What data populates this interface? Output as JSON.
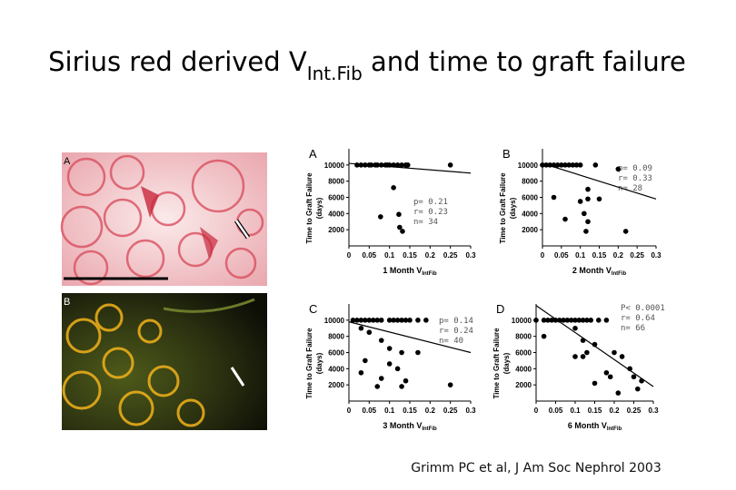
{
  "slide": {
    "title": {
      "main": "Sirius red derived V",
      "sub": "Int.Fib",
      "rest": " and time to graft failure"
    },
    "images": [
      {
        "label": "A"
      },
      {
        "label": "B"
      }
    ],
    "citation": "Grimm PC et al, J Am Soc Nephrol 2003"
  },
  "chart_data": [
    {
      "type": "scatter",
      "panel": "A",
      "ylabel": [
        "Time to Graft Failure",
        "(days)"
      ],
      "xlabel": "1 Month V",
      "xlabel_sub": "IntFib",
      "stats": [
        "p= 0.21",
        "r= 0.23",
        "n= 34"
      ],
      "color": "#000000",
      "x": [
        0.02,
        0.03,
        0.04,
        0.05,
        0.055,
        0.065,
        0.07,
        0.08,
        0.09,
        0.095,
        0.1,
        0.11,
        0.12,
        0.13,
        0.14,
        0.145,
        0.25,
        0.11,
        0.078,
        0.123,
        0.125,
        0.132
      ],
      "y": [
        10000,
        10000,
        10000,
        10000,
        10000,
        10000,
        10000,
        10000,
        10000,
        10000,
        10000,
        10000,
        10000,
        10000,
        10000,
        10000,
        10000,
        7200,
        3600,
        3900,
        2300,
        1800
      ],
      "trend": {
        "x": [
          0,
          0.3
        ],
        "y": [
          10200,
          9000
        ]
      },
      "xlim": [
        0,
        0.3
      ],
      "ylim": [
        0,
        12000
      ],
      "xticks": [
        0,
        0.05,
        0.1,
        0.15,
        0.2,
        0.25,
        0.3
      ],
      "yticks": [
        2000,
        4000,
        6000,
        8000,
        10000
      ]
    },
    {
      "type": "scatter",
      "panel": "B",
      "ylabel": [
        "Time to Graft Failure",
        "(days)"
      ],
      "xlabel": "2 Month V",
      "xlabel_sub": "IntFib",
      "stats": [
        "p= 0.09",
        "r= 0.33",
        "n= 28"
      ],
      "color": "#000000",
      "x": [
        0.0,
        0.01,
        0.02,
        0.03,
        0.04,
        0.05,
        0.06,
        0.07,
        0.08,
        0.09,
        0.1,
        0.14,
        0.2,
        0.03,
        0.06,
        0.1,
        0.11,
        0.12,
        0.12,
        0.115,
        0.15,
        0.22,
        0.12
      ],
      "y": [
        10000,
        10000,
        10000,
        10000,
        10000,
        10000,
        10000,
        10000,
        10000,
        10000,
        10000,
        10000,
        9500,
        6000,
        3300,
        5500,
        4000,
        5800,
        3000,
        1800,
        5800,
        1800,
        7000
      ],
      "trend": {
        "x": [
          0,
          0.3
        ],
        "y": [
          10200,
          5800
        ]
      },
      "xlim": [
        0,
        0.3
      ],
      "ylim": [
        0,
        12000
      ],
      "xticks": [
        0,
        0.05,
        0.1,
        0.15,
        0.2,
        0.25,
        0.3
      ],
      "yticks": [
        2000,
        4000,
        6000,
        8000,
        10000
      ]
    },
    {
      "type": "scatter",
      "panel": "C",
      "ylabel": [
        "Time to Graft Failure",
        "(days)"
      ],
      "xlabel": "3 Month V",
      "xlabel_sub": "IntFib",
      "stats": [
        "p= 0.14",
        "r= 0.24",
        "n= 40"
      ],
      "color": "#000000",
      "x": [
        0.01,
        0.02,
        0.03,
        0.04,
        0.05,
        0.06,
        0.07,
        0.08,
        0.1,
        0.11,
        0.12,
        0.13,
        0.14,
        0.15,
        0.17,
        0.19,
        0.03,
        0.05,
        0.08,
        0.1,
        0.13,
        0.17,
        0.04,
        0.03,
        0.07,
        0.1,
        0.12,
        0.14,
        0.13,
        0.25,
        0.08
      ],
      "y": [
        10000,
        10000,
        10000,
        10000,
        10000,
        10000,
        10000,
        10000,
        10000,
        10000,
        10000,
        10000,
        10000,
        10000,
        10000,
        10000,
        9000,
        8500,
        7500,
        6500,
        6000,
        6000,
        5000,
        3500,
        1800,
        4600,
        4000,
        2500,
        1800,
        2000,
        2800
      ],
      "trend": {
        "x": [
          0,
          0.3
        ],
        "y": [
          9800,
          6000
        ]
      },
      "xlim": [
        0,
        0.3
      ],
      "ylim": [
        0,
        12000
      ],
      "xticks": [
        0,
        0.05,
        0.1,
        0.15,
        0.2,
        0.25,
        0.3
      ],
      "yticks": [
        2000,
        4000,
        6000,
        8000,
        10000
      ]
    },
    {
      "type": "scatter",
      "panel": "D",
      "ylabel": [
        "Time to Graft Failure",
        "(days)"
      ],
      "xlabel": "6 Month V",
      "xlabel_sub": "IntFib",
      "stats": [
        "P< 0.0001",
        "r= 0.64",
        "n= 66"
      ],
      "color": "#000000",
      "x": [
        0.0,
        0.02,
        0.03,
        0.04,
        0.05,
        0.06,
        0.07,
        0.08,
        0.09,
        0.1,
        0.11,
        0.12,
        0.13,
        0.14,
        0.16,
        0.18,
        0.02,
        0.1,
        0.12,
        0.12,
        0.13,
        0.15,
        0.18,
        0.19,
        0.2,
        0.22,
        0.24,
        0.25,
        0.27,
        0.21,
        0.15,
        0.1,
        0.26
      ],
      "y": [
        10000,
        10000,
        10000,
        10000,
        10000,
        10000,
        10000,
        10000,
        10000,
        10000,
        10000,
        10000,
        10000,
        10000,
        10000,
        10000,
        8000,
        9000,
        7500,
        5500,
        6000,
        7000,
        3500,
        3000,
        6000,
        5500,
        4000,
        3000,
        2500,
        1000,
        2200,
        5500,
        1500
      ],
      "trend": {
        "x": [
          0,
          0.3
        ],
        "y": [
          11800,
          1800
        ]
      },
      "xlim": [
        0,
        0.3
      ],
      "ylim": [
        0,
        12000
      ],
      "xticks": [
        0,
        0.05,
        0.1,
        0.15,
        0.2,
        0.25,
        0.3
      ],
      "yticks": [
        2000,
        4000,
        6000,
        8000,
        10000
      ]
    }
  ]
}
